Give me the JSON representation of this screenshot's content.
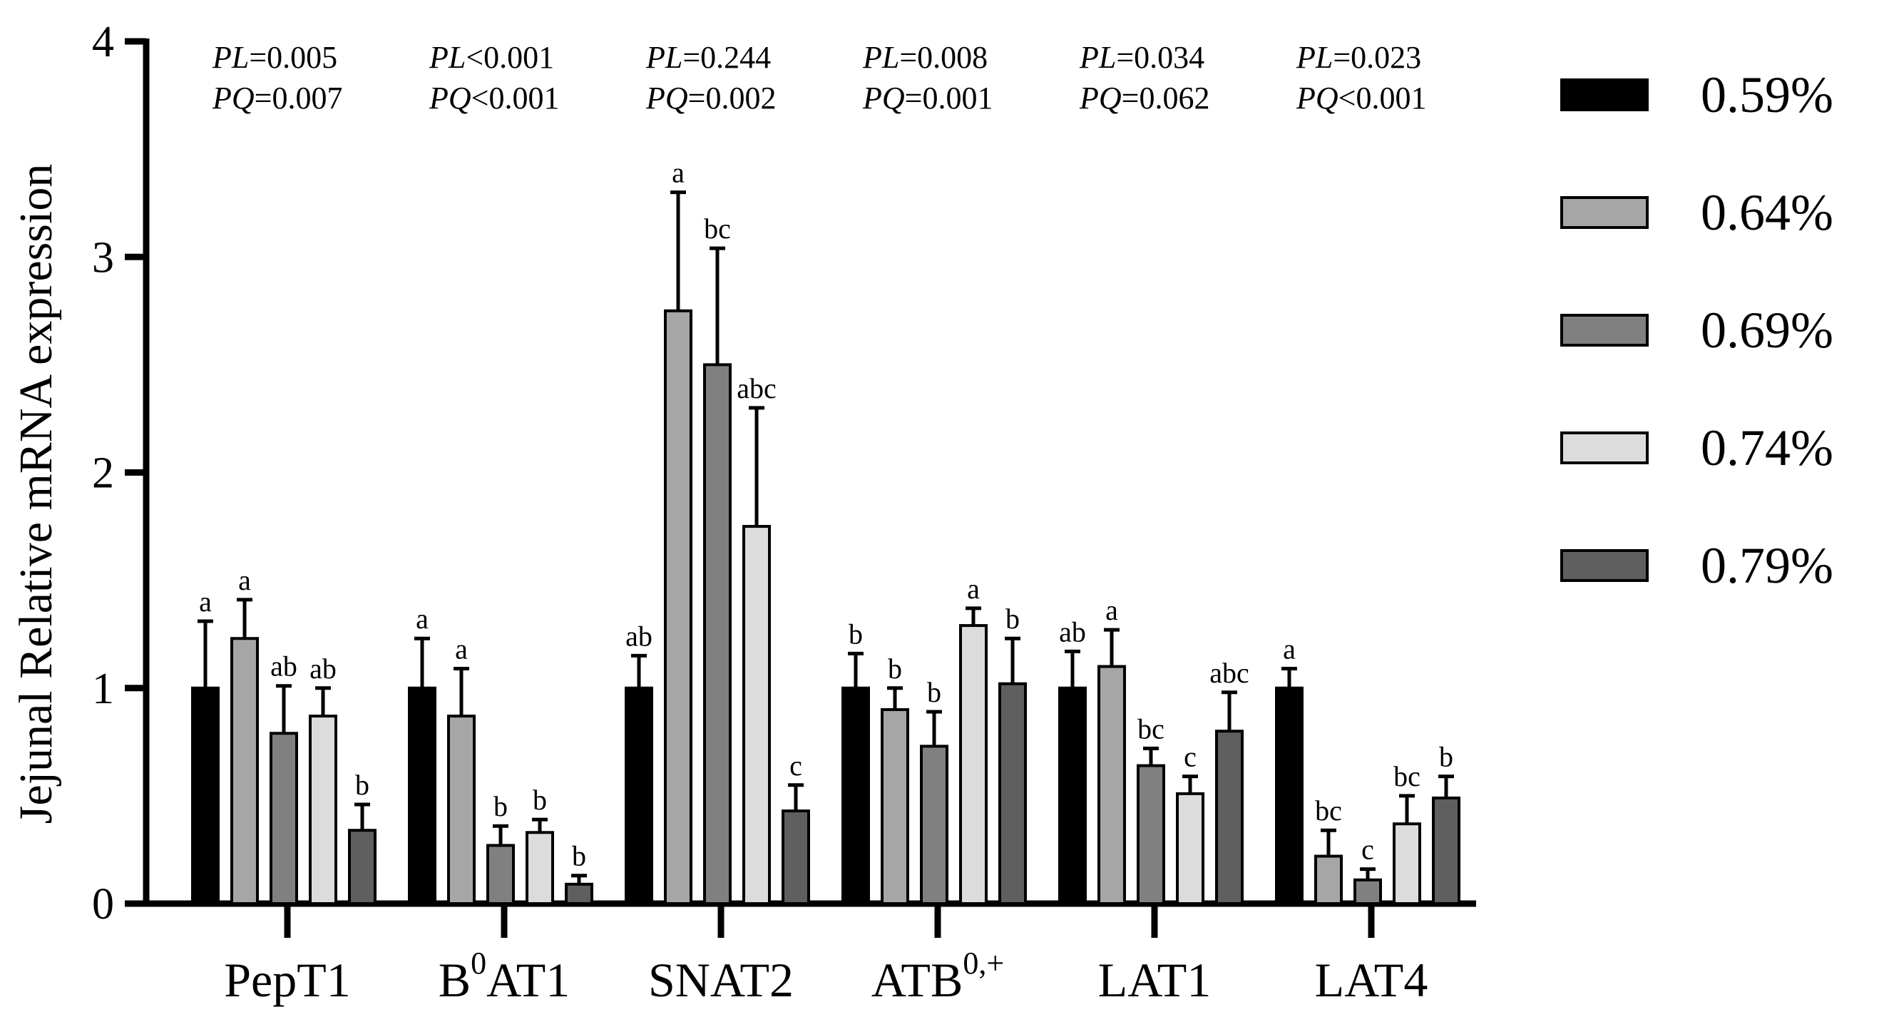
{
  "chart_data": {
    "type": "bar",
    "ylabel": "Jejunal Relative mRNA expression",
    "ylim": [
      0,
      4
    ],
    "yticks": [
      "0",
      "1",
      "2",
      "3",
      "4"
    ],
    "categories": [
      {
        "base": "PepT1",
        "sup": ""
      },
      {
        "base": "B",
        "sup": "0",
        "rest": "AT1"
      },
      {
        "base": "SNAT2",
        "sup": ""
      },
      {
        "base": "ATB",
        "sup": "0,+"
      },
      {
        "base": "LAT1",
        "sup": ""
      },
      {
        "base": "LAT4",
        "sup": ""
      }
    ],
    "series": [
      {
        "name": "0.59%",
        "color": "#000000",
        "values": [
          1.0,
          1.0,
          1.0,
          1.0,
          1.0,
          1.0
        ],
        "errors": [
          0.31,
          0.23,
          0.15,
          0.16,
          0.17,
          0.09
        ],
        "letters": [
          "a",
          "a",
          "ab",
          "b",
          "ab",
          "a"
        ]
      },
      {
        "name": "0.64%",
        "color": "#a6a6a6",
        "values": [
          1.23,
          0.87,
          2.75,
          0.9,
          1.1,
          0.22
        ],
        "errors": [
          0.18,
          0.22,
          0.55,
          0.1,
          0.17,
          0.12
        ],
        "letters": [
          "a",
          "a",
          "a",
          "b",
          "a",
          "bc"
        ]
      },
      {
        "name": "0.69%",
        "color": "#808080",
        "values": [
          0.79,
          0.27,
          2.5,
          0.73,
          0.64,
          0.11
        ],
        "errors": [
          0.22,
          0.09,
          0.54,
          0.16,
          0.08,
          0.05
        ],
        "letters": [
          "ab",
          "b",
          "bc",
          "b",
          "bc",
          "c"
        ]
      },
      {
        "name": "0.74%",
        "color": "#dcdcdc",
        "values": [
          0.87,
          0.33,
          1.75,
          1.29,
          0.51,
          0.37
        ],
        "errors": [
          0.13,
          0.06,
          0.55,
          0.08,
          0.08,
          0.13
        ],
        "letters": [
          "ab",
          "b",
          "abc",
          "a",
          "c",
          "bc"
        ]
      },
      {
        "name": "0.79%",
        "color": "#5f5f5f",
        "values": [
          0.34,
          0.09,
          0.43,
          1.02,
          0.8,
          0.49
        ],
        "errors": [
          0.12,
          0.04,
          0.12,
          0.21,
          0.18,
          0.1
        ],
        "letters": [
          "b",
          "b",
          "c",
          "b",
          "abc",
          "b"
        ]
      }
    ],
    "stats": [
      {
        "pl": "=0.005",
        "pq": "=0.007"
      },
      {
        "pl": "<0.001",
        "pq": "<0.001"
      },
      {
        "pl": "=0.244",
        "pq": "=0.002"
      },
      {
        "pl": "=0.008",
        "pq": "=0.001"
      },
      {
        "pl": "=0.034",
        "pq": "=0.062"
      },
      {
        "pl": "=0.023",
        "pq": "<0.001"
      }
    ],
    "stat_labels": {
      "pl": "PL",
      "pq": "PQ"
    },
    "legend_position": "right"
  }
}
